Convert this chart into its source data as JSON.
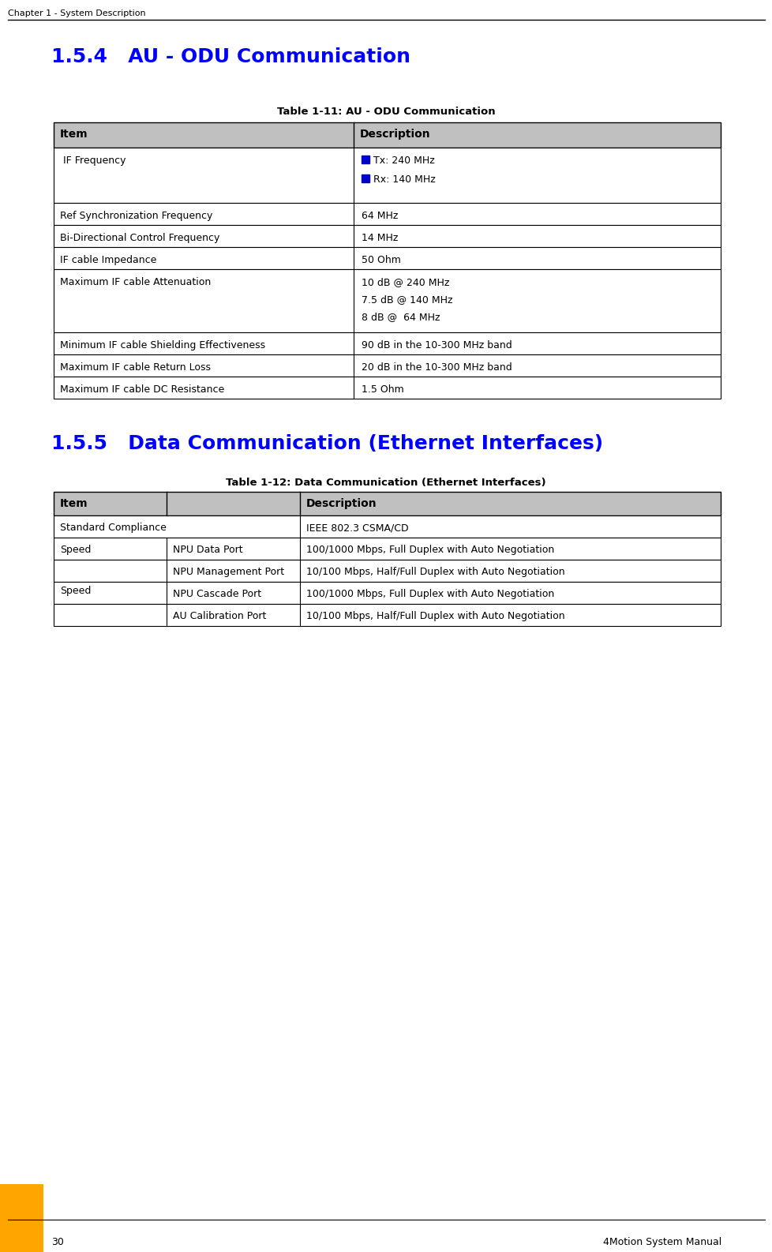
{
  "page_header": "Chapter 1 - System Description",
  "section_title_1": "1.5.4   AU - ODU Communication",
  "section_title_2": "1.5.5   Data Communication (Ethernet Interfaces)",
  "section_title_color": "#0000FF",
  "table1_title": "Table 1-11: AU - ODU Communication",
  "table2_title": "Table 1-12: Data Communication (Ethernet Interfaces)",
  "table1_header": [
    "Item",
    "Description"
  ],
  "table1_rows": [
    {
      "item": " IF Frequency",
      "description": "■  Tx: 240 MHz\n\n■  Rx: 140 MHz",
      "has_bullet": true,
      "multiline": true,
      "bullet_color": "#0000CC"
    },
    {
      "item": "Ref Synchronization Frequency",
      "description": "64 MHz",
      "has_bullet": false,
      "multiline": false
    },
    {
      "item": "Bi-Directional Control Frequency",
      "description": "14 MHz",
      "has_bullet": false,
      "multiline": false
    },
    {
      "item": "IF cable Impedance",
      "description": "50 Ohm",
      "has_bullet": false,
      "multiline": false
    },
    {
      "item": "Maximum IF cable Attenuation",
      "description": "10 dB @ 240 MHz\n\n7.5 dB @ 140 MHz\n\n8 dB @  64 MHz",
      "has_bullet": false,
      "multiline": true
    },
    {
      "item": "Minimum IF cable Shielding Effectiveness",
      "description": "90 dB in the 10-300 MHz band",
      "has_bullet": false,
      "multiline": false
    },
    {
      "item": "Maximum IF cable Return Loss",
      "description": "20 dB in the 10-300 MHz band",
      "has_bullet": false,
      "multiline": false
    },
    {
      "item": "Maximum IF cable DC Resistance",
      "description": "1.5 Ohm",
      "has_bullet": false,
      "multiline": false
    }
  ],
  "table2_header": [
    "Item",
    "Description"
  ],
  "table2_rows": [
    {
      "col1": "Standard Compliance",
      "col2": "",
      "col3": "IEEE 802.3 CSMA/CD",
      "merged": true
    },
    {
      "col1": "Speed",
      "col2": "NPU Data Port",
      "col3": "100/1000 Mbps, Full Duplex with Auto Negotiation",
      "merged": false
    },
    {
      "col1": "",
      "col2": "NPU Management Port",
      "col3": "10/100 Mbps, Half/Full Duplex with Auto Negotiation",
      "merged": false
    },
    {
      "col1": "",
      "col2": "NPU Cascade Port",
      "col3": "100/1000 Mbps, Full Duplex with Auto Negotiation",
      "merged": false
    },
    {
      "col1": "",
      "col2": "AU Calibration Port",
      "col3": "10/100 Mbps, Half/Full Duplex with Auto Negotiation",
      "merged": false
    }
  ],
  "header_bg_color": "#C0C0C0",
  "header_text_color": "#000000",
  "row_bg_color": "#FFFFFF",
  "border_color": "#000000",
  "bullet_color": "#0000CC",
  "footer_page": "30",
  "footer_right": "4Motion System Manual",
  "footer_accent_color": "#FFA500",
  "background_color": "#FFFFFF"
}
